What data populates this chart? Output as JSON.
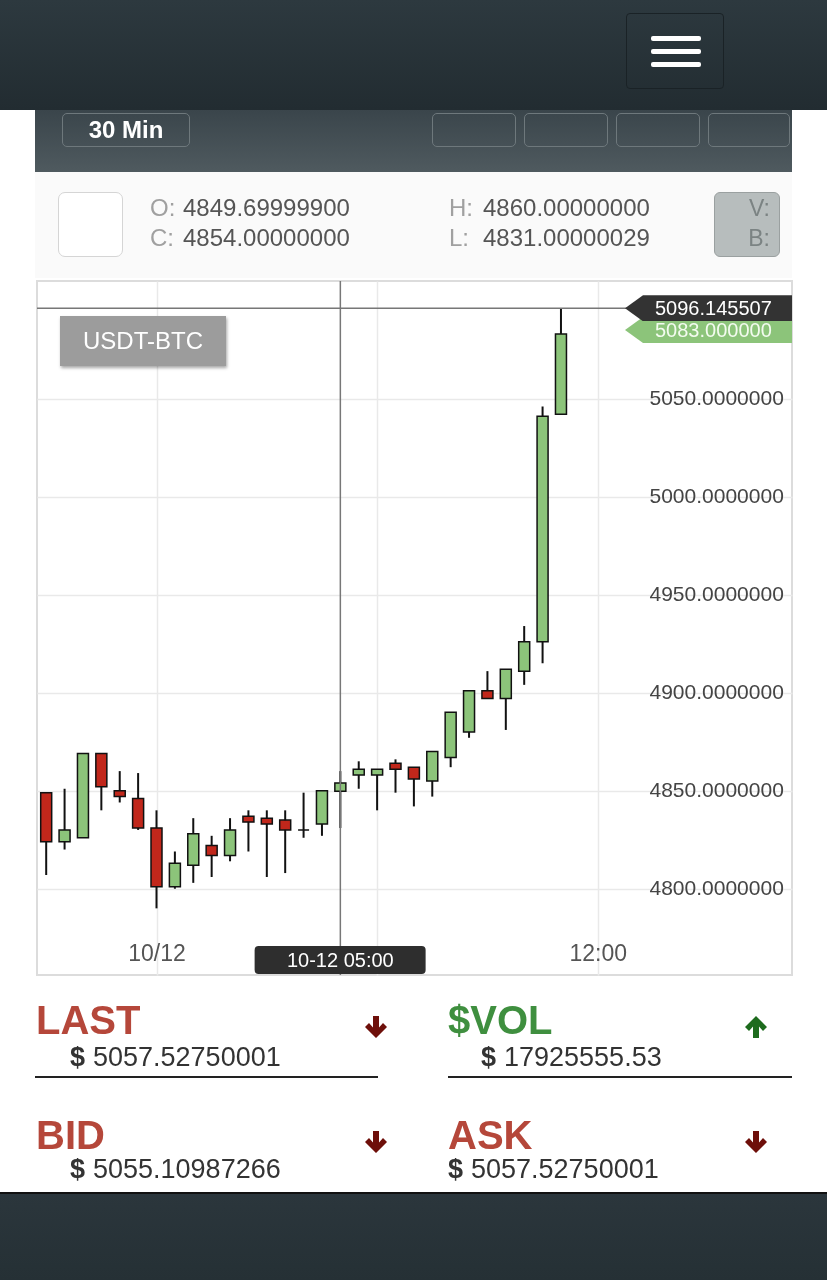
{
  "chart_data": {
    "type": "candlestick",
    "title": "USDT-BTC",
    "x": [
      "--10-11T21:00",
      "--10-11T21:30",
      "--10-11T22:00",
      "--10-11T22:30",
      "--10-11T23:00",
      "--10-11T23:30",
      "--10-12T00:00",
      "--10-12T00:30",
      "--10-12T01:00",
      "--10-12T01:30",
      "--10-12T02:00",
      "--10-12T02:30",
      "--10-12T03:00",
      "--10-12T03:30",
      "--10-12T04:00",
      "--10-12T04:30",
      "--10-12T05:00",
      "--10-12T05:30",
      "--10-12T06:00",
      "--10-12T06:30",
      "--10-12T07:00",
      "--10-12T07:30",
      "--10-12T08:00",
      "--10-12T08:30",
      "--10-12T09:00",
      "--10-12T09:30",
      "--10-12T10:00",
      "--10-12T10:30",
      "--10-12T11:00"
    ],
    "ohlc": [
      [
        4849,
        4849,
        4807,
        4824
      ],
      [
        4824,
        4851,
        4820,
        4830
      ],
      [
        4826,
        4869,
        4826,
        4869
      ],
      [
        4869,
        4869,
        4840,
        4852
      ],
      [
        4850,
        4860,
        4844,
        4847
      ],
      [
        4846,
        4859,
        4830,
        4831
      ],
      [
        4831,
        4840,
        4790,
        4801
      ],
      [
        4801,
        4819,
        4800,
        4813
      ],
      [
        4812,
        4836,
        4803,
        4828
      ],
      [
        4822,
        4827,
        4806,
        4817
      ],
      [
        4817,
        4836,
        4814,
        4830
      ],
      [
        4837,
        4840,
        4819,
        4834
      ],
      [
        4836,
        4840,
        4806,
        4833
      ],
      [
        4835,
        4840,
        4808,
        4830
      ],
      [
        4830,
        4849,
        4826,
        4830
      ],
      [
        4833,
        4850,
        4827,
        4850
      ],
      [
        4849.699999,
        4860,
        4831.00000029,
        4854
      ],
      [
        4858,
        4865,
        4851,
        4861
      ],
      [
        4858,
        4861,
        4840,
        4861
      ],
      [
        4864,
        4866,
        4849,
        4861
      ],
      [
        4862,
        4862,
        4842,
        4856
      ],
      [
        4855,
        4870,
        4847,
        4870
      ],
      [
        4867,
        4890,
        4862,
        4890
      ],
      [
        4880,
        4901,
        4877,
        4901
      ],
      [
        4901,
        4911,
        4897,
        4897
      ],
      [
        4897,
        4912,
        4881,
        4912
      ],
      [
        4911,
        4934,
        4904,
        4926
      ],
      [
        4926,
        5046,
        4915,
        5041
      ],
      [
        5042,
        5096,
        5042,
        5083
      ]
    ],
    "colors": [
      "#c1271b",
      "#8cc47a",
      "#8cc47a",
      "#c1271b",
      "#c1271b",
      "#c1271b",
      "#c1271b",
      "#8cc47a",
      "#8cc47a",
      "#c1271b",
      "#8cc47a",
      "#c1271b",
      "#c1271b",
      "#c1271b",
      "#111111",
      "#8cc47a",
      "#8cc47a",
      "#8cc47a",
      "#8cc47a",
      "#c1271b",
      "#c1271b",
      "#8cc47a",
      "#8cc47a",
      "#8cc47a",
      "#c1271b",
      "#8cc47a",
      "#8cc47a",
      "#8cc47a",
      "#8cc47a"
    ],
    "xlim": [
      "--10-11T20:45",
      "--10-12T17:17"
    ],
    "xticks": [
      {
        "value": "--10-12T00:00",
        "label": "10/12"
      },
      {
        "value": "--10-12T06:00",
        "label": null
      },
      {
        "value": "--10-12T12:00",
        "label": "12:00"
      }
    ],
    "ylim": [
      4756,
      5110
    ],
    "yticks": [
      {
        "value": 4800,
        "label": "4800.0000000"
      },
      {
        "value": 4850,
        "label": "4850.0000000"
      },
      {
        "value": 4900,
        "label": "4900.0000000"
      },
      {
        "value": 4950,
        "label": "4950.0000000"
      },
      {
        "value": 5000,
        "label": "5000.0000000"
      },
      {
        "value": 5050,
        "label": "5050.0000000"
      }
    ],
    "grid": true,
    "ref_lines": [
      {
        "axis": "x",
        "value": "--10-12T05:00",
        "label": "10-12 05:00",
        "color": "#777777"
      },
      {
        "axis": "y",
        "value": 5096.145507,
        "label": "5096.145507",
        "color": "#777777"
      }
    ],
    "annotations": [
      "30 Min",
      "O: 4849.69999900",
      "C: 4854.00000000",
      "H: 4860.00000000",
      "L: 4831.00000029",
      "V:",
      "B:",
      "LAST",
      "$ 5057.52750001",
      "$VOL",
      "$ 17925555.53",
      "BID",
      "$ 5055.10987266",
      "ASK",
      "$ 5057.52750001",
      "5083.000000"
    ]
  }
}
